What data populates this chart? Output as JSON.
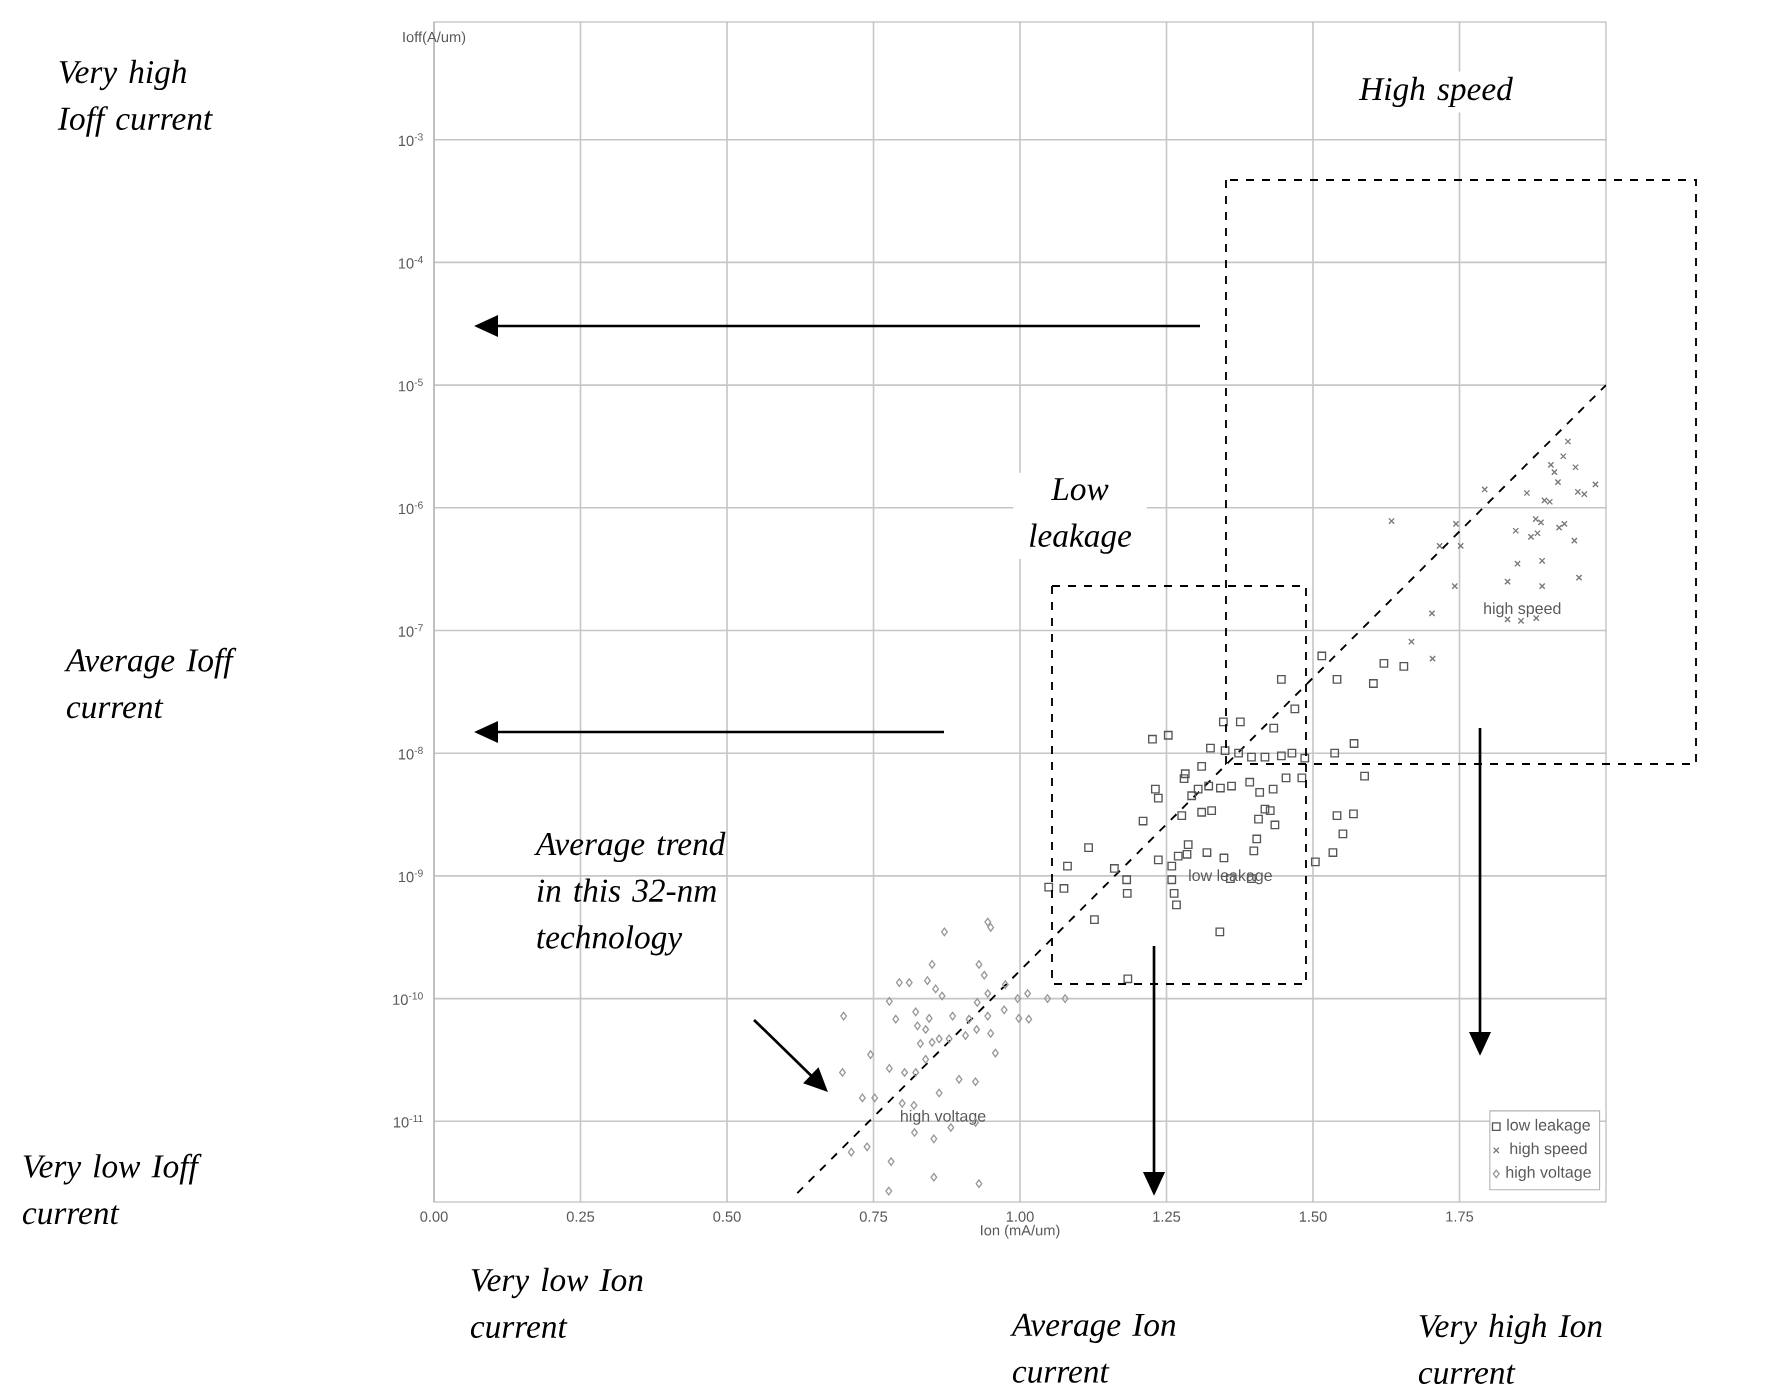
{
  "chart_data": {
    "type": "scatter",
    "xlabel": "Ion (mA/um)",
    "ylabel": "Ioff(A/um)",
    "log": "y",
    "grid": true,
    "legend": "bottom right",
    "xlim": [
      0,
      2.0
    ],
    "ylim": [
      2.2e-12,
      0.0091
    ],
    "xticks": [
      {
        "value": 0,
        "label": "0.00"
      },
      {
        "value": 0.25,
        "label": "0.25"
      },
      {
        "value": 0.5,
        "label": "0.50"
      },
      {
        "value": 0.75,
        "label": "0.75"
      },
      {
        "value": 1.0,
        "label": "1.00"
      },
      {
        "value": 1.25,
        "label": "1.25"
      },
      {
        "value": 1.5,
        "label": "1.50"
      },
      {
        "value": 1.75,
        "label": "1.75"
      }
    ],
    "yticks": [
      {
        "value": 0.001,
        "label": "10$^{-3}$"
      },
      {
        "value": 0.0001,
        "label": "10$^{-4}$"
      },
      {
        "value": 1e-05,
        "label": "10$^{-5}$"
      },
      {
        "value": 1e-06,
        "label": "10$^{-6}$"
      },
      {
        "value": 1e-07,
        "label": "10$^{-7}$"
      },
      {
        "value": 1e-08,
        "label": "10$^{-8}$"
      },
      {
        "value": 1e-09,
        "label": "10$^{-9}$"
      },
      {
        "value": 1e-10,
        "label": "10$^{-10}$"
      },
      {
        "value": 1e-11,
        "label": "10$^{-11}$"
      }
    ],
    "series": [
      {
        "name": "low leakage",
        "marker": "square",
        "color": "#555555",
        "x": [
          1.515,
          1.446,
          1.541,
          1.469,
          1.433,
          1.347,
          1.376,
          1.226,
          1.253,
          1.325,
          1.35,
          1.373,
          1.395,
          1.418,
          1.446,
          1.464,
          1.486,
          1.537,
          1.282,
          1.31,
          1.231,
          1.236,
          1.28,
          1.304,
          1.293,
          1.322,
          1.342,
          1.361,
          1.392,
          1.409,
          1.432,
          1.454,
          1.481,
          1.418,
          1.427,
          1.435,
          1.407,
          1.327,
          1.31,
          1.276,
          1.21,
          1.117,
          1.081,
          1.161,
          1.182,
          1.049,
          1.075,
          1.183,
          1.236,
          1.259,
          1.27,
          1.287,
          1.285,
          1.319,
          1.348,
          1.359,
          1.395,
          1.399,
          1.404,
          1.541,
          1.569,
          1.551,
          1.534,
          1.504,
          1.259,
          1.263,
          1.267,
          1.603,
          1.621,
          1.655,
          1.588,
          1.57,
          1.341,
          1.184,
          1.127
        ],
        "values": [
          6.2e-08,
          4e-08,
          4e-08,
          2.3e-08,
          1.6e-08,
          1.8e-08,
          1.8e-08,
          1.3e-08,
          1.4e-08,
          1.1e-08,
          1.05e-08,
          1e-08,
          9.3e-09,
          9.3e-09,
          9.5e-09,
          1e-08,
          9.1e-09,
          1e-08,
          6.8e-09,
          7.8e-09,
          5.1e-09,
          4.3e-09,
          6.2e-09,
          5.1e-09,
          4.5e-09,
          5.4e-09,
          5.2e-09,
          5.4e-09,
          5.8e-09,
          4.8e-09,
          5.1e-09,
          6.3e-09,
          6.3e-09,
          3.5e-09,
          3.4e-09,
          2.6e-09,
          2.9e-09,
          3.4e-09,
          3.3e-09,
          3.1e-09,
          2.8e-09,
          1.7e-09,
          1.2e-09,
          1.15e-09,
          9.3e-10,
          8.1e-10,
          7.9e-10,
          7.2e-10,
          1.35e-09,
          1.2e-09,
          1.45e-09,
          1.8e-09,
          1.5e-09,
          1.55e-09,
          1.4e-09,
          9.5e-10,
          9.5e-10,
          1.6e-09,
          2e-09,
          3.1e-09,
          3.2e-09,
          2.2e-09,
          1.55e-09,
          1.3e-09,
          9.3e-10,
          7.2e-10,
          5.8e-10,
          3.7e-08,
          5.4e-08,
          5.1e-08,
          6.5e-09,
          1.2e-08,
          3.5e-10,
          1.45e-10,
          4.4e-10
        ]
      },
      {
        "name": "high speed",
        "marker": "cross",
        "color": "#777777",
        "x": [
          1.935,
          1.927,
          1.906,
          1.948,
          1.912,
          1.918,
          1.793,
          1.865,
          1.895,
          1.904,
          1.952,
          1.963,
          1.982,
          1.88,
          1.889,
          1.929,
          1.92,
          1.846,
          1.872,
          1.883,
          1.946,
          1.752,
          1.716,
          1.849,
          1.891,
          1.954,
          1.832,
          1.891,
          1.855,
          1.881,
          1.703,
          1.668,
          1.704,
          1.634,
          1.744,
          1.742,
          1.832
        ],
        "values": [
          3.47e-06,
          2.63e-06,
          2.24e-06,
          2.14e-06,
          1.95e-06,
          1.62e-06,
          1.41e-06,
          1.32e-06,
          1.15e-06,
          1.12e-06,
          1.35e-06,
          1.29e-06,
          1.55e-06,
          8.1e-07,
          7.6e-07,
          7.4e-07,
          6.9e-07,
          6.5e-07,
          5.8e-07,
          6.2e-07,
          5.4e-07,
          4.9e-07,
          4.9e-07,
          3.5e-07,
          3.7e-07,
          2.7e-07,
          2.5e-07,
          2.3e-07,
          1.2e-07,
          1.26e-07,
          1.38e-07,
          8.1e-08,
          5.9e-08,
          7.8e-07,
          7.4e-07,
          2.3e-07,
          1.23e-07
        ]
      },
      {
        "name": "high voltage",
        "marker": "diamond",
        "color": "#999999",
        "x": [
          0.871,
          0.945,
          0.95,
          0.85,
          0.794,
          0.811,
          0.842,
          0.856,
          0.867,
          0.777,
          0.93,
          0.939,
          0.927,
          0.945,
          0.975,
          0.996,
          1.013,
          1.047,
          1.077,
          0.699,
          0.788,
          0.822,
          0.845,
          0.885,
          0.913,
          0.945,
          0.973,
          0.998,
          1.015,
          0.839,
          0.825,
          0.83,
          0.85,
          0.862,
          0.879,
          0.907,
          0.926,
          0.95,
          0.958,
          0.745,
          0.777,
          0.803,
          0.822,
          0.839,
          0.697,
          0.731,
          0.752,
          0.896,
          0.924,
          0.82,
          0.853,
          0.882,
          0.924,
          0.78,
          0.776,
          0.853,
          0.93,
          0.712,
          0.739,
          0.819,
          0.862,
          0.799
        ],
        "values": [
          3.5e-10,
          4.2e-10,
          3.8e-10,
          1.9e-10,
          1.35e-10,
          1.35e-10,
          1.4e-10,
          1.2e-10,
          1.05e-10,
          9.5e-11,
          1.9e-10,
          1.55e-10,
          9.3e-11,
          1.1e-10,
          1.3e-10,
          1e-10,
          1.1e-10,
          1e-10,
          1e-10,
          7.2e-11,
          6.8e-11,
          7.8e-11,
          6.9e-11,
          7.2e-11,
          6.8e-11,
          7.2e-11,
          8.1e-11,
          6.9e-11,
          6.8e-11,
          5.6e-11,
          6e-11,
          4.3e-11,
          4.4e-11,
          4.7e-11,
          4.7e-11,
          5e-11,
          5.6e-11,
          5.2e-11,
          3.6e-11,
          3.5e-11,
          2.7e-11,
          2.5e-11,
          2.5e-11,
          3.2e-11,
          2.5e-11,
          1.55e-11,
          1.55e-11,
          2.2e-11,
          2.1e-11,
          8.1e-12,
          7.2e-12,
          8.9e-12,
          9.8e-12,
          4.7e-12,
          2.7e-12,
          3.5e-12,
          3.1e-12,
          5.6e-12,
          6.2e-12,
          1.35e-11,
          1.7e-11,
          1.4e-11
        ]
      },
      {
        "type": "line",
        "line_style": "dashed",
        "marker": "none",
        "color": "#000000",
        "x": [
          0.62,
          2.0
        ],
        "values": [
          2.6e-12,
          1e-05
        ]
      }
    ],
    "annotations": [
      "Very high Ioff current",
      "Average Ioff current",
      "Very low Ioff current",
      "Average trend in this 32-nm technology",
      "High speed",
      "Low leakage",
      "Very low Ion current",
      "Average Ion current",
      "Very high Ion current"
    ]
  }
}
